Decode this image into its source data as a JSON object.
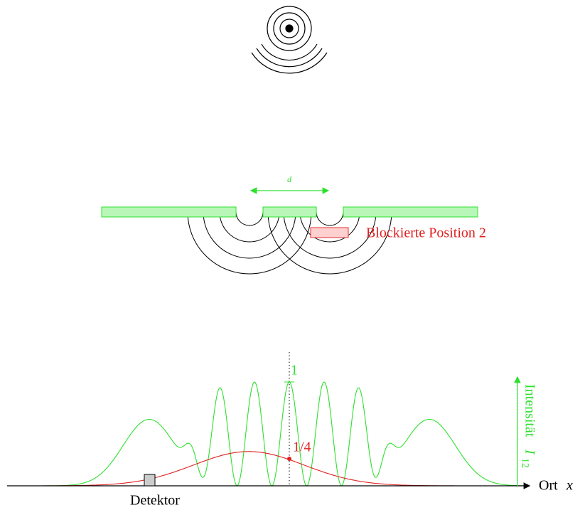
{
  "barrier": {
    "slit_distance_label": "d",
    "blocked_label": "Blockierte Position 2"
  },
  "plot": {
    "peak_label": "1",
    "blocked_peak_label": "1/4",
    "y_axis_label": "Intensität",
    "y_axis_variable": "I",
    "y_axis_subscript": "12",
    "x_axis_label": "Ort",
    "x_axis_variable": "x",
    "detector_label": "Detektor"
  }
}
